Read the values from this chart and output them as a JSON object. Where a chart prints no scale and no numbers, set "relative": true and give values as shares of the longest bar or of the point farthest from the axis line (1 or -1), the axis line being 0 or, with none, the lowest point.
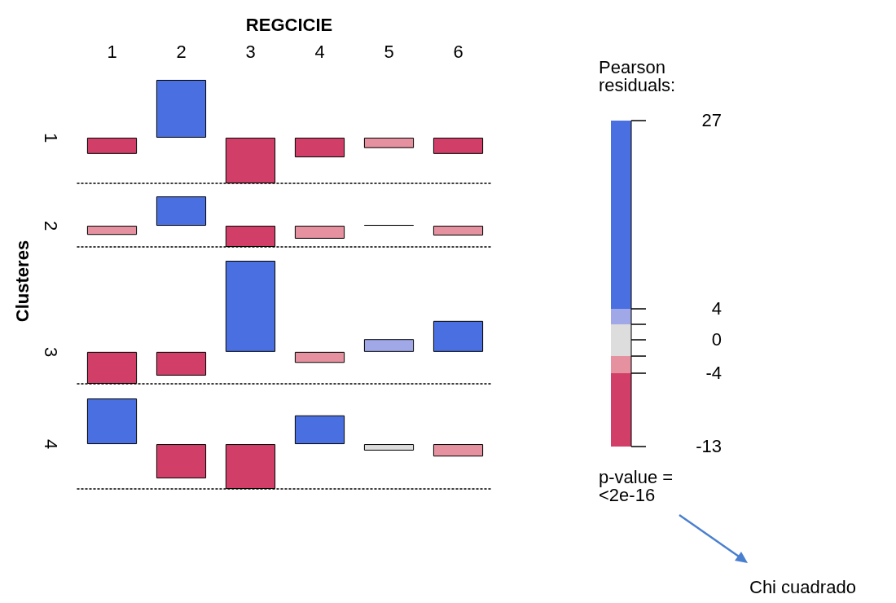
{
  "chart_data": [
    {
      "type": "bar",
      "title": "REGCICIE",
      "categories": [
        "1",
        "2",
        "3",
        "4",
        "5",
        "6"
      ],
      "ylabel": "1",
      "relative": true,
      "tick_labels": "x",
      "annotations": [
        "Clusteres"
      ],
      "values": [
        -0.28,
        1,
        -0.79,
        -0.34,
        -0.18,
        -0.28
      ],
      "colors": [
        "#d13f68",
        "#4a6fe0",
        "#d13f68",
        "#d13f68",
        "#e6919f",
        "#d13f68"
      ]
    },
    {
      "type": "bar",
      "categories": [
        null,
        null,
        null,
        null,
        null,
        null
      ],
      "ylabel": "2",
      "relative": true,
      "tick_labels": false,
      "values": [
        -0.31,
        1,
        -0.72,
        -0.44,
        0.03,
        -0.33
      ],
      "colors": [
        "#e6919f",
        "#4a6fe0",
        "#d13f68",
        "#e6919f",
        "#dddddd",
        "#e6919f"
      ]
    },
    {
      "type": "bar",
      "categories": [
        null,
        null,
        null,
        null,
        null,
        null
      ],
      "ylabel": "3",
      "relative": true,
      "tick_labels": false,
      "values": [
        -0.35,
        -0.26,
        1,
        -0.12,
        0.14,
        0.34
      ],
      "colors": [
        "#d13f68",
        "#d13f68",
        "#4a6fe0",
        "#e6919f",
        "#a0a8e8",
        "#4a6fe0"
      ]
    },
    {
      "type": "bar",
      "categories": [
        null,
        null,
        null,
        null,
        null,
        null
      ],
      "ylabel": "4",
      "relative": true,
      "tick_labels": false,
      "values": [
        1,
        -0.75,
        -0.98,
        0.63,
        -0.14,
        -0.27
      ],
      "colors": [
        "#4a6fe0",
        "#d13f68",
        "#d13f68",
        "#4a6fe0",
        "#dddddd",
        "#e6919f"
      ]
    },
    {
      "type": "other",
      "title": "Pearson residuals:",
      "annotations": [
        "27",
        "4",
        "0",
        "-4",
        "-13",
        "p-value = <2e-16",
        "Chi cuadrado"
      ]
    }
  ]
}
